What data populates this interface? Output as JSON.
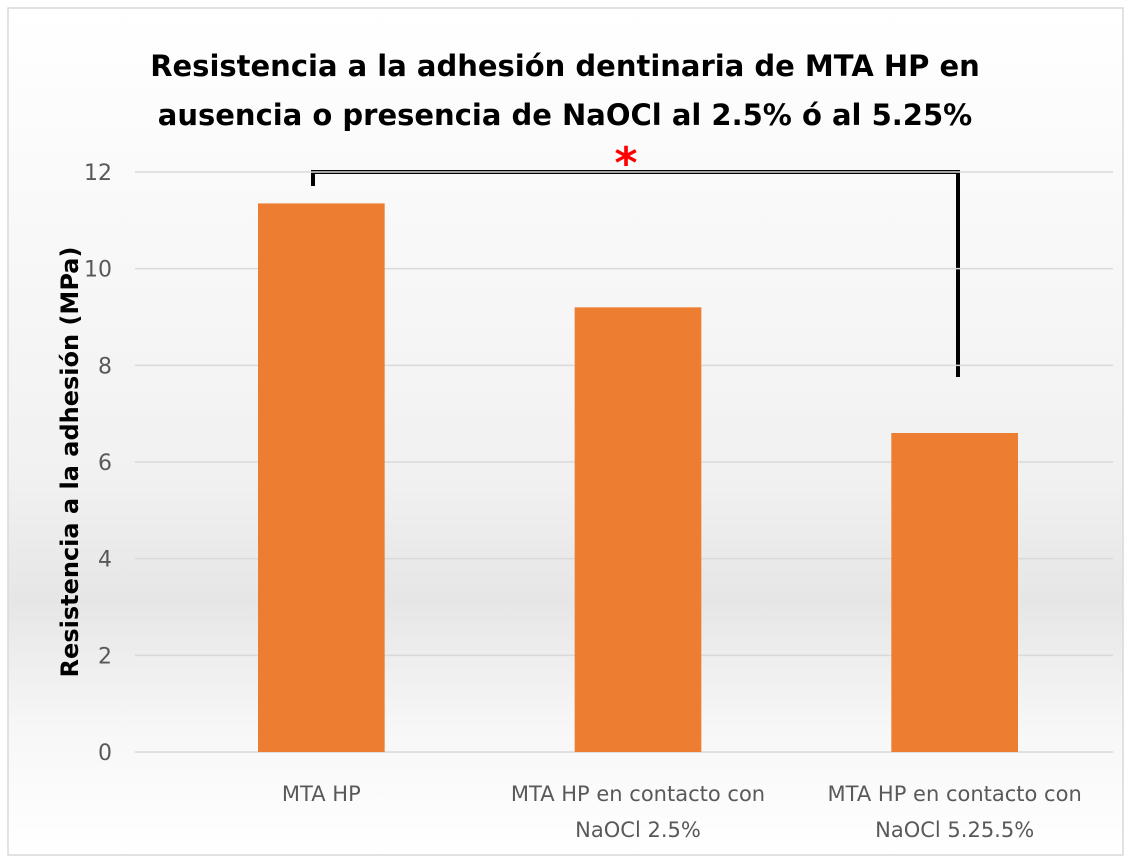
{
  "chart_data": {
    "type": "bar",
    "title": "Resistencia a la adhesión dentinaria de MTA HP en ausencia o presencia de NaOCl al 2.5% ó al 5.25%",
    "y_label": "Resistencia a la adhesión (MPa)",
    "categories": [
      "MTA HP",
      "MTA HP en contacto con NaOCl 2.5%",
      "MTA HP en contacto con NaOCl 5.25.5%"
    ],
    "values": [
      11.35,
      9.2,
      6.6
    ],
    "color": "#ed7d31",
    "ylim": [
      0,
      12
    ],
    "yticks": [
      0,
      2,
      4,
      6,
      8,
      10,
      12
    ],
    "grid": true,
    "annotation": "*"
  }
}
